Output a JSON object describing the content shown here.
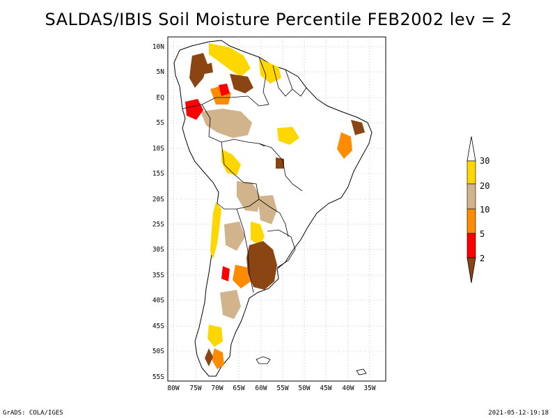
{
  "title": "SALDAS/IBIS Soil Moisture Percentile FEB2002 lev = 2",
  "footer": {
    "left": "GrADS: COLA/IGES",
    "right": "2021-05-12-19:18"
  },
  "lat_ticks": [
    "10N",
    "5N",
    "EQ",
    "5S",
    "10S",
    "15S",
    "20S",
    "25S",
    "30S",
    "35S",
    "40S",
    "45S",
    "50S",
    "55S"
  ],
  "lon_ticks": [
    "80W",
    "75W",
    "70W",
    "65W",
    "60W",
    "55W",
    "50W",
    "45W",
    "40W",
    "35W"
  ],
  "legend": {
    "labels": [
      "2",
      "5",
      "10",
      "20",
      "30"
    ],
    "colors": [
      "#8b4513",
      "#ff0000",
      "#ff8c00",
      "#d2b48c",
      "#ffd700"
    ]
  },
  "colors": {
    "ocean": "#ffffff",
    "land": "#ffffff",
    "border": "#000000",
    "grid": "#aaaaaa"
  }
}
